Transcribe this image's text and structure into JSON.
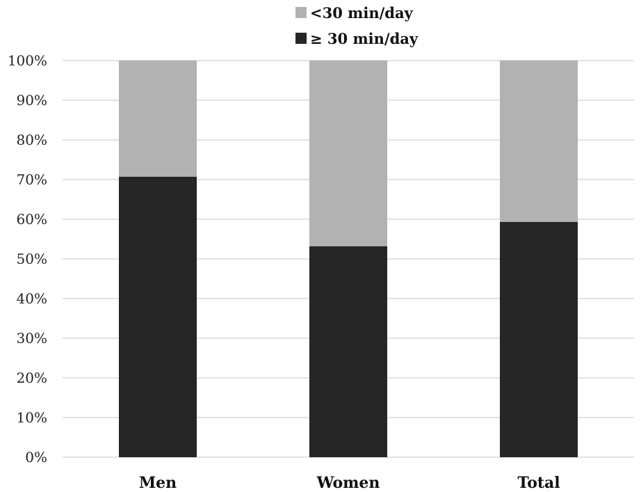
{
  "chart_data": {
    "type": "bar",
    "stacked": true,
    "percent": true,
    "categories": [
      "Men",
      "Women",
      "Total"
    ],
    "series": [
      {
        "name": "≥ 30 min/day",
        "values": [
          70.7,
          53.2,
          59.3
        ],
        "color": "#262626"
      },
      {
        "name": "<30 min/day",
        "values": [
          29.3,
          46.8,
          40.7
        ],
        "color": "#b2b2b2"
      }
    ],
    "ylim": [
      0,
      100
    ],
    "yticks": [
      0,
      10,
      20,
      30,
      40,
      50,
      60,
      70,
      80,
      90,
      100
    ],
    "ytick_labels": [
      "0%",
      "10%",
      "20%",
      "30%",
      "40%",
      "50%",
      "60%",
      "70%",
      "80%",
      "90%",
      "100%"
    ],
    "grid": true,
    "legend_position": "top",
    "legend_order": [
      "<30 min/day",
      "≥ 30 min/day"
    ]
  }
}
